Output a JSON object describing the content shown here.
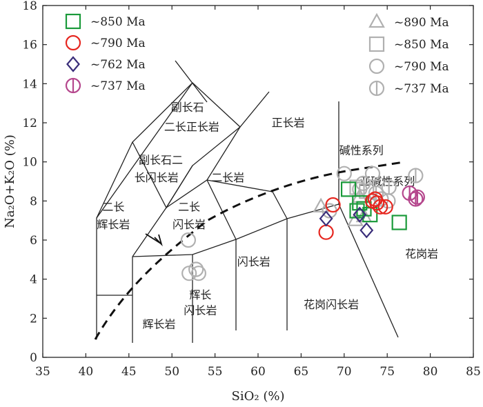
{
  "chart_data": {
    "type": "scatter",
    "title": "",
    "xlabel": "SiO₂ (%)",
    "ylabel": "Na₂O+K₂O (%)",
    "xlim": [
      35,
      85
    ],
    "ylim": [
      0,
      18
    ],
    "x_ticks": [
      35,
      40,
      45,
      50,
      55,
      60,
      65,
      70,
      75,
      80,
      85
    ],
    "y_ticks": [
      0,
      2,
      4,
      6,
      8,
      10,
      12,
      14,
      16,
      18
    ],
    "legend_left": [
      {
        "label": "~850 Ma",
        "marker": "square",
        "color": "#1a9a3a"
      },
      {
        "label": "~790 Ma",
        "marker": "circle",
        "color": "#e6261f"
      },
      {
        "label": "~762 Ma",
        "marker": "diamond",
        "color": "#3a2e7a"
      },
      {
        "label": "~737 Ma",
        "marker": "circle-bar",
        "color": "#b5478d"
      }
    ],
    "legend_right": [
      {
        "label": "~890 Ma",
        "marker": "triangle",
        "color": "#b0b0b0"
      },
      {
        "label": "~850 Ma",
        "marker": "square",
        "color": "#b0b0b0"
      },
      {
        "label": "~790 Ma",
        "marker": "circle",
        "color": "#b0b0b0"
      },
      {
        "label": "~737 Ma",
        "marker": "circle-bar",
        "color": "#b0b0b0"
      }
    ],
    "region_labels": [
      {
        "text": "副长石",
        "x": 51.8,
        "y": 12.6
      },
      {
        "text": "二长正长岩",
        "x": 52.3,
        "y": 11.6
      },
      {
        "text": "正长岩",
        "x": 63.5,
        "y": 11.8
      },
      {
        "text": "副长石二",
        "x": 48.7,
        "y": 9.9
      },
      {
        "text": "长闪长岩",
        "x": 48.2,
        "y": 9.0
      },
      {
        "text": "二长岩",
        "x": 56.5,
        "y": 9.0
      },
      {
        "text": "二长",
        "x": 43.2,
        "y": 7.5
      },
      {
        "text": "辉长岩",
        "x": 43.2,
        "y": 6.6
      },
      {
        "text": "二长",
        "x": 52.0,
        "y": 7.5
      },
      {
        "text": "闪长岩",
        "x": 52.0,
        "y": 6.6
      },
      {
        "text": "闪长岩",
        "x": 59.5,
        "y": 4.7
      },
      {
        "text": "辉长",
        "x": 53.3,
        "y": 3.0
      },
      {
        "text": "闪长岩",
        "x": 53.3,
        "y": 2.2
      },
      {
        "text": "辉长岩",
        "x": 48.5,
        "y": 1.5
      },
      {
        "text": "花岗闪长岩",
        "x": 68.5,
        "y": 2.5
      },
      {
        "text": "花岗岩",
        "x": 79.0,
        "y": 5.1
      },
      {
        "text": "碱性系列",
        "x": 72.0,
        "y": 10.4
      },
      {
        "text": "亚碱性系列",
        "x": 75.0,
        "y": 8.8
      }
    ],
    "series": [
      {
        "name": "~850 Ma",
        "group": "this study",
        "marker": "square",
        "color": "#1a9a3a",
        "x": [
          70.5,
          71.8,
          72.3,
          73.0,
          71.5,
          76.4
        ],
        "y": [
          8.6,
          7.9,
          7.6,
          7.3,
          7.5,
          6.9
        ]
      },
      {
        "name": "~790 Ma",
        "group": "this study",
        "marker": "circle",
        "color": "#e6261f",
        "x": [
          68.7,
          67.9,
          73.3,
          73.8,
          74.2,
          74.8,
          73.6
        ],
        "y": [
          7.8,
          6.4,
          8.0,
          7.9,
          7.7,
          7.7,
          8.1
        ]
      },
      {
        "name": "~762 Ma",
        "group": "this study",
        "marker": "diamond",
        "color": "#3a2e7a",
        "x": [
          67.9,
          71.8,
          72.6
        ],
        "y": [
          7.1,
          7.3,
          6.5
        ]
      },
      {
        "name": "~737 Ma",
        "group": "this study",
        "marker": "circle-bar",
        "color": "#b5478d",
        "x": [
          77.6,
          78.3,
          78.5
        ],
        "y": [
          8.4,
          8.1,
          8.2
        ]
      },
      {
        "name": "~890 Ma",
        "group": "published",
        "marker": "triangle",
        "color": "#b0b0b0",
        "x": [
          67.3,
          71.3,
          72.3,
          71.8
        ],
        "y": [
          7.7,
          7.0,
          7.2,
          8.2
        ]
      },
      {
        "name": "~850 Ma",
        "group": "published",
        "marker": "square",
        "color": "#b0b0b0",
        "x": [
          71.5,
          72.6
        ],
        "y": [
          8.7,
          8.5
        ]
      },
      {
        "name": "~790 Ma",
        "group": "published",
        "marker": "circle",
        "color": "#b0b0b0",
        "x": [
          51.9,
          52.0,
          52.8,
          53.1,
          70.0,
          73.3,
          71.8,
          72.2,
          74.3,
          75.1,
          68.3
        ],
        "y": [
          6.0,
          4.3,
          4.5,
          4.3,
          9.4,
          9.4,
          8.6,
          8.9,
          8.1,
          8.0,
          7.5
        ]
      },
      {
        "name": "~737 Ma",
        "group": "published",
        "marker": "circle-bar",
        "color": "#b0b0b0",
        "x": [
          78.3,
          75.2,
          73.7
        ],
        "y": [
          9.3,
          8.7,
          8.4
        ]
      }
    ]
  }
}
